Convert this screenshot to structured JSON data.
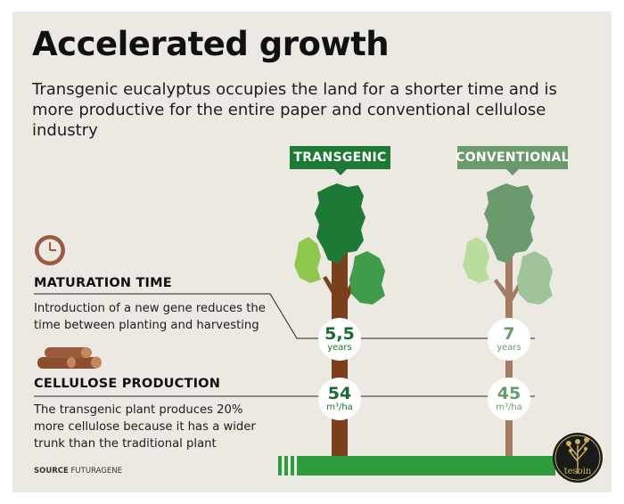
{
  "title": "Accelerated growth",
  "subtitle": "Transgenic eucalyptus occupies the land for a shorter time and is more productive for the entire paper and conventional cellulose industry",
  "labels": {
    "transgenic": "TRANSGENIC",
    "conventional": "CONVENTIONAL"
  },
  "sections": {
    "maturation": {
      "heading": "MATURATION TIME",
      "text": "Introduction of a new gene reduces the time between planting and harvesting",
      "icon": "clock-icon"
    },
    "cellulose": {
      "heading": "CELLULOSE PRODUCTION",
      "text": "The transgenic plant produces 20% more cellulose because it has a wider trunk than the traditional plant",
      "icon": "logs-icon"
    }
  },
  "source": {
    "label": "SOURCE",
    "value": "FUTURAGENE"
  },
  "logo_text": "tesoin",
  "colors": {
    "transgenic_dark": "#1c7a36",
    "transgenic_mid": "#3e9c4a",
    "transgenic_light": "#8fc74e",
    "transgenic_trunk": "#7a3f1c",
    "conventional_dark": "#6b9a6d",
    "conventional_mid": "#9fc49a",
    "conventional_light": "#b9dd9c",
    "conventional_trunk": "#a37c63",
    "ground": "#2e9b3c",
    "background": "#ebe9e2"
  },
  "chart_data": {
    "type": "table",
    "columns": [
      "TRANSGENIC",
      "CONVENTIONAL"
    ],
    "rows": [
      {
        "metric": "MATURATION TIME",
        "values": [
          "5,5",
          "7"
        ],
        "unit": "years"
      },
      {
        "metric": "CELLULOSE PRODUCTION",
        "values": [
          "54",
          "45"
        ],
        "unit": "m³/ha"
      }
    ]
  }
}
